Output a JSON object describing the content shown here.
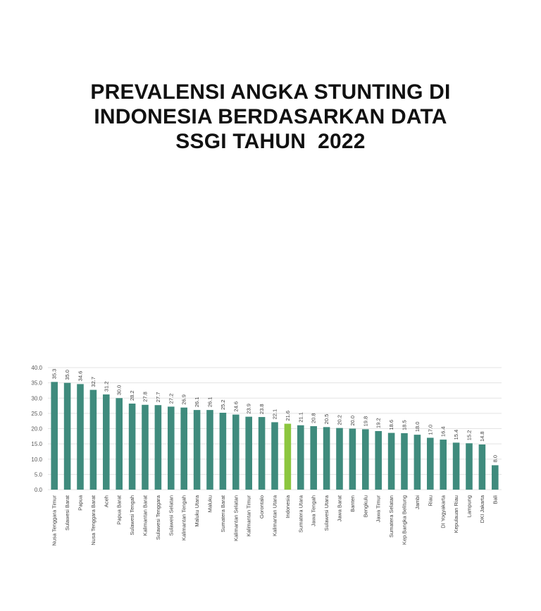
{
  "title_lines": [
    "PREVALENSI ANGKA STUNTING DI",
    "INDONESIA BERDASARKAN DATA",
    "SSGI TAHUN  2022"
  ],
  "colors": {
    "bar": "#3f8b7d",
    "highlight": "#8cc63f",
    "grid": "#e3e3e3"
  },
  "chart_data": {
    "type": "bar",
    "title": "PREVALENSI ANGKA STUNTING DI INDONESIA BERDASARKAN DATA SSGI TAHUN  2022",
    "categories": [
      "Nusa Tenggara Timur",
      "Sulawesi Barat",
      "Papua",
      "Nusa Tenggara Barat",
      "Aceh",
      "Papua Barat",
      "Sulawesi Tengah",
      "Kalimantan Barat",
      "Sulawesi Tenggara",
      "Sulawesi Selatan",
      "Kalimantan Tengah",
      "Maluku Utara",
      "Maluku",
      "Sumatera Barat",
      "Kalimantan Selatan",
      "Kalimantan Timur",
      "Gorontalo",
      "Kalimantan Utara",
      "Indonesia",
      "Sumatera Utara",
      "Jawa Tengah",
      "Sulawesi Utara",
      "Jawa Barat",
      "Banten",
      "Bengkulu",
      "Jawa Timur",
      "Sumatera Selatan",
      "Kep.Bangka Belitung",
      "Jambi",
      "Riau",
      "DI Yogyakarta",
      "Kepulauan Riau",
      "Lampung",
      "DKI Jakarta",
      "Bali"
    ],
    "values": [
      35.3,
      35.0,
      34.6,
      32.7,
      31.2,
      30.0,
      28.2,
      27.8,
      27.7,
      27.2,
      26.9,
      26.1,
      26.1,
      25.2,
      24.6,
      23.9,
      23.8,
      22.1,
      21.6,
      21.1,
      20.8,
      20.5,
      20.2,
      20.0,
      19.8,
      19.2,
      18.6,
      18.5,
      18.0,
      17.0,
      16.4,
      15.4,
      15.2,
      14.8,
      8.0
    ],
    "value_labels": [
      "35.3",
      "35.0",
      "34.6",
      "32.7",
      "31.2",
      "30.0",
      "28.2",
      "27.8",
      "27.7",
      "27.2",
      "26.9",
      "26.1",
      "26.1",
      "25.2",
      "24.6",
      "23.9",
      "23.8",
      "22.1",
      "21.6",
      "21.1",
      "20.8",
      "20.5",
      "20.2",
      "20.0",
      "19.8",
      "19.2",
      "18.6",
      "18.5",
      "18.0",
      "17.0",
      "16.4",
      "15.4",
      "15.2",
      "14.8",
      "8.0"
    ],
    "highlight_category": "Indonesia",
    "ylim": [
      0,
      40
    ],
    "y_ticks": [
      "0.0",
      "5.0",
      "10.0",
      "15.0",
      "20.0",
      "25.0",
      "30.0",
      "35.0",
      "40.0"
    ],
    "grid": true,
    "legend": "none",
    "xlabel": "",
    "ylabel": ""
  }
}
